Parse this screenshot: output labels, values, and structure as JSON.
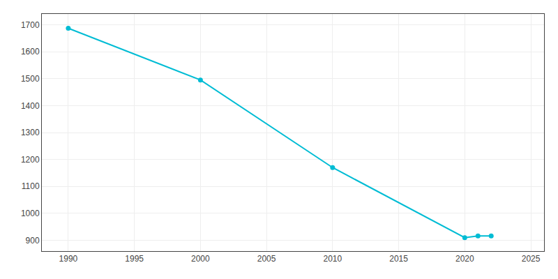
{
  "chart_data": {
    "type": "line",
    "x": [
      1990,
      2000,
      2010,
      2020,
      2021,
      2022
    ],
    "values": [
      1687,
      1495,
      1170,
      910,
      916,
      916
    ],
    "color": "#00BCD4",
    "marker": "circle",
    "xlim": [
      1988,
      2026
    ],
    "ylim": [
      860,
      1740
    ],
    "xticks": [
      1990,
      1995,
      2000,
      2005,
      2010,
      2015,
      2020,
      2025
    ],
    "yticks": [
      900,
      1000,
      1100,
      1200,
      1300,
      1400,
      1500,
      1600,
      1700
    ],
    "grid": true
  }
}
